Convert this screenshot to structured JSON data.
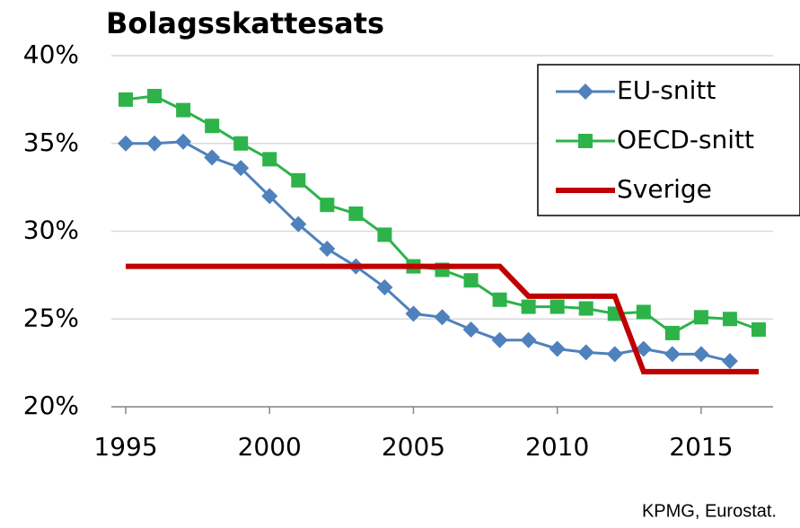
{
  "chart_data": {
    "type": "line",
    "title": "Bolagsskattesats",
    "source": "KPMG, Eurostat.",
    "x": [
      1995,
      1996,
      1997,
      1998,
      1999,
      2000,
      2001,
      2002,
      2003,
      2004,
      2005,
      2006,
      2007,
      2008,
      2009,
      2010,
      2011,
      2012,
      2013,
      2014,
      2015,
      2016,
      2017
    ],
    "series": [
      {
        "name": "EU-snitt",
        "color": "#4f81bd",
        "marker": "diamond",
        "values": [
          35.0,
          35.0,
          35.1,
          34.2,
          33.6,
          32.0,
          30.4,
          29.0,
          28.0,
          26.8,
          25.3,
          25.1,
          24.4,
          23.8,
          23.8,
          23.3,
          23.1,
          23.0,
          23.3,
          23.0,
          23.0,
          22.6,
          null
        ]
      },
      {
        "name": "OECD-snitt",
        "color": "#2db34a",
        "marker": "square",
        "values": [
          37.5,
          37.7,
          36.9,
          36.0,
          35.0,
          34.1,
          32.9,
          31.5,
          31.0,
          29.8,
          28.0,
          27.8,
          27.2,
          26.1,
          25.7,
          25.7,
          25.6,
          25.3,
          25.4,
          24.2,
          25.1,
          25.0,
          24.4
        ]
      },
      {
        "name": "Sverige",
        "color": "#c00000",
        "marker": "none",
        "values": [
          28,
          28,
          28,
          28,
          28,
          28,
          28,
          28,
          28,
          28,
          28,
          28,
          28,
          28,
          26.3,
          26.3,
          26.3,
          26.3,
          22,
          22,
          22,
          22,
          22
        ]
      }
    ],
    "xlim": [
      1994.5,
      2017.5
    ],
    "xticks": [
      1995,
      2000,
      2005,
      2010,
      2015
    ],
    "ylim": [
      20,
      40
    ],
    "yticks": [
      {
        "value": 20,
        "label": "20%"
      },
      {
        "value": 25,
        "label": "25%"
      },
      {
        "value": 30,
        "label": "30%"
      },
      {
        "value": 35,
        "label": "35%"
      },
      {
        "value": 40,
        "label": "40%"
      }
    ],
    "grid": true,
    "legend": "top-right"
  }
}
